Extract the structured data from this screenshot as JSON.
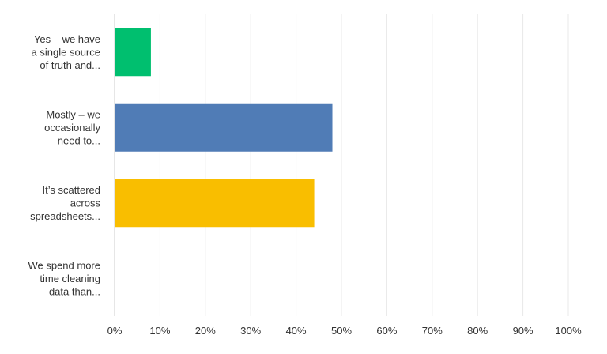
{
  "chart_data": {
    "type": "bar",
    "orientation": "horizontal",
    "categories": [
      [
        "Yes – we have",
        "a single source",
        "of truth and..."
      ],
      [
        "Mostly – we",
        "occasionally",
        "need to..."
      ],
      [
        "It’s scattered",
        "across",
        "spreadsheets..."
      ],
      [
        "We spend more",
        "time cleaning",
        "data than..."
      ]
    ],
    "values": [
      8,
      48,
      44,
      0
    ],
    "bar_colors": [
      "#00bf6f",
      "#507cb6",
      "#f9be00",
      "#6bc8cd"
    ],
    "xlim": [
      0,
      100
    ],
    "xticks": [
      "0%",
      "10%",
      "20%",
      "30%",
      "40%",
      "50%",
      "60%",
      "70%",
      "80%",
      "90%",
      "100%"
    ],
    "grid": true,
    "title": "",
    "xlabel": "",
    "ylabel": ""
  }
}
